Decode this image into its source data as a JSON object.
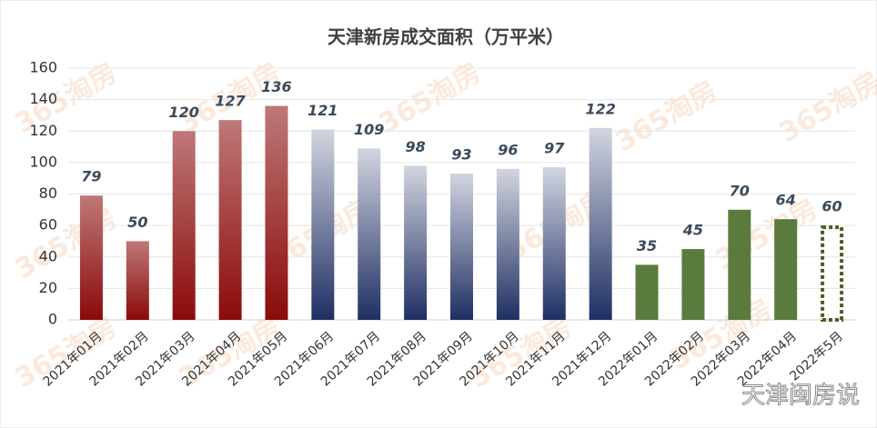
{
  "chart_data": {
    "type": "bar",
    "title": "天津新房成交面积（万平米）",
    "categories": [
      "2021年01月",
      "2021年02月",
      "2021年03月",
      "2021年04月",
      "2021年05月",
      "2021年06月",
      "2021年07月",
      "2021年08月",
      "2021年09月",
      "2021年10月",
      "2021年11月",
      "2021年12月",
      "2022年01月",
      "2022年02月",
      "2022年03月",
      "2022年04月",
      "2022年5月"
    ],
    "values": [
      79,
      50,
      120,
      127,
      136,
      121,
      109,
      98,
      93,
      96,
      97,
      122,
      35,
      45,
      70,
      64,
      60
    ],
    "colors": [
      "#8b0a0a",
      "#8b0a0a",
      "#8b0a0a",
      "#8b0a0a",
      "#8b0a0a",
      "#1f2f63",
      "#1f2f63",
      "#1f2f63",
      "#1f2f63",
      "#1f2f63",
      "#1f2f63",
      "#1f2f63",
      "#5b7b3e",
      "#5b7b3e",
      "#5b7b3e",
      "#5b7b3e",
      "#4a5e28"
    ],
    "fills": [
      "gradient",
      "gradient",
      "gradient",
      "gradient",
      "gradient",
      "gradient",
      "gradient",
      "gradient",
      "gradient",
      "gradient",
      "gradient",
      "gradient",
      "solid",
      "solid",
      "solid",
      "solid",
      "dashed"
    ],
    "ylim": [
      0,
      160
    ],
    "yticks": [
      0,
      20,
      40,
      60,
      80,
      100,
      120,
      140,
      160
    ],
    "grid": true,
    "background_watermark": "365淘房",
    "watermark": "天津闽房说"
  }
}
